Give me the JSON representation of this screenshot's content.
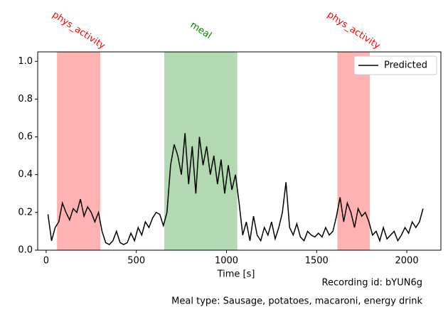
{
  "chart_data": {
    "type": "line",
    "x_label": "Time [s]",
    "footer": [
      "Recording id: bYUN6g",
      "Meal type: Sausage, potatoes, macaroni, energy drink"
    ],
    "legend": "upper right",
    "xlim": [
      -47,
      2189
    ],
    "ylim": [
      0,
      1.05
    ],
    "xticks": [
      0,
      500,
      1000,
      1500,
      2000
    ],
    "yticks": [
      {
        "value": 0,
        "label": "0.0"
      },
      0.2,
      0.4,
      0.6,
      0.8,
      {
        "value": 1,
        "label": "1.0"
      }
    ],
    "regions": [
      {
        "label": "phys_activity",
        "start": 60,
        "end": 300,
        "color": "#ff0000"
      },
      {
        "label": "meal",
        "start": 655,
        "end": 1060,
        "color": "#008000"
      },
      {
        "label": "phys_activity",
        "start": 1615,
        "end": 1795,
        "color": "#ff0000"
      }
    ],
    "x": [
      10,
      30,
      50,
      70,
      90,
      110,
      130,
      150,
      170,
      190,
      210,
      230,
      250,
      270,
      290,
      310,
      330,
      350,
      370,
      390,
      410,
      430,
      450,
      470,
      490,
      510,
      530,
      550,
      570,
      590,
      610,
      630,
      650,
      670,
      690,
      710,
      730,
      750,
      770,
      790,
      810,
      830,
      850,
      870,
      890,
      910,
      930,
      950,
      970,
      990,
      1010,
      1030,
      1050,
      1070,
      1090,
      1110,
      1130,
      1150,
      1170,
      1190,
      1210,
      1230,
      1250,
      1270,
      1290,
      1310,
      1330,
      1350,
      1370,
      1390,
      1410,
      1430,
      1450,
      1470,
      1490,
      1510,
      1530,
      1550,
      1570,
      1590,
      1610,
      1630,
      1650,
      1670,
      1690,
      1710,
      1730,
      1750,
      1770,
      1790,
      1810,
      1830,
      1850,
      1870,
      1890,
      1910,
      1930,
      1950,
      1970,
      1990,
      2010,
      2030,
      2050,
      2070,
      2090
    ],
    "series": [
      {
        "name": "Predicted",
        "color": "#000000",
        "values": [
          0.19,
          0.05,
          0.12,
          0.15,
          0.25,
          0.2,
          0.16,
          0.22,
          0.2,
          0.27,
          0.18,
          0.23,
          0.2,
          0.15,
          0.2,
          0.1,
          0.04,
          0.03,
          0.05,
          0.1,
          0.04,
          0.03,
          0.04,
          0.09,
          0.05,
          0.12,
          0.08,
          0.15,
          0.12,
          0.17,
          0.2,
          0.19,
          0.13,
          0.2,
          0.45,
          0.56,
          0.5,
          0.4,
          0.62,
          0.35,
          0.55,
          0.3,
          0.6,
          0.45,
          0.55,
          0.4,
          0.5,
          0.35,
          0.48,
          0.3,
          0.45,
          0.32,
          0.4,
          0.25,
          0.08,
          0.15,
          0.05,
          0.18,
          0.08,
          0.05,
          0.12,
          0.08,
          0.15,
          0.06,
          0.12,
          0.2,
          0.36,
          0.12,
          0.08,
          0.14,
          0.07,
          0.05,
          0.1,
          0.08,
          0.07,
          0.09,
          0.07,
          0.12,
          0.08,
          0.1,
          0.18,
          0.28,
          0.15,
          0.25,
          0.2,
          0.12,
          0.22,
          0.18,
          0.2,
          0.15,
          0.08,
          0.1,
          0.05,
          0.12,
          0.06,
          0.08,
          0.1,
          0.05,
          0.08,
          0.12,
          0.09,
          0.15,
          0.12,
          0.15,
          0.22
        ]
      }
    ]
  }
}
